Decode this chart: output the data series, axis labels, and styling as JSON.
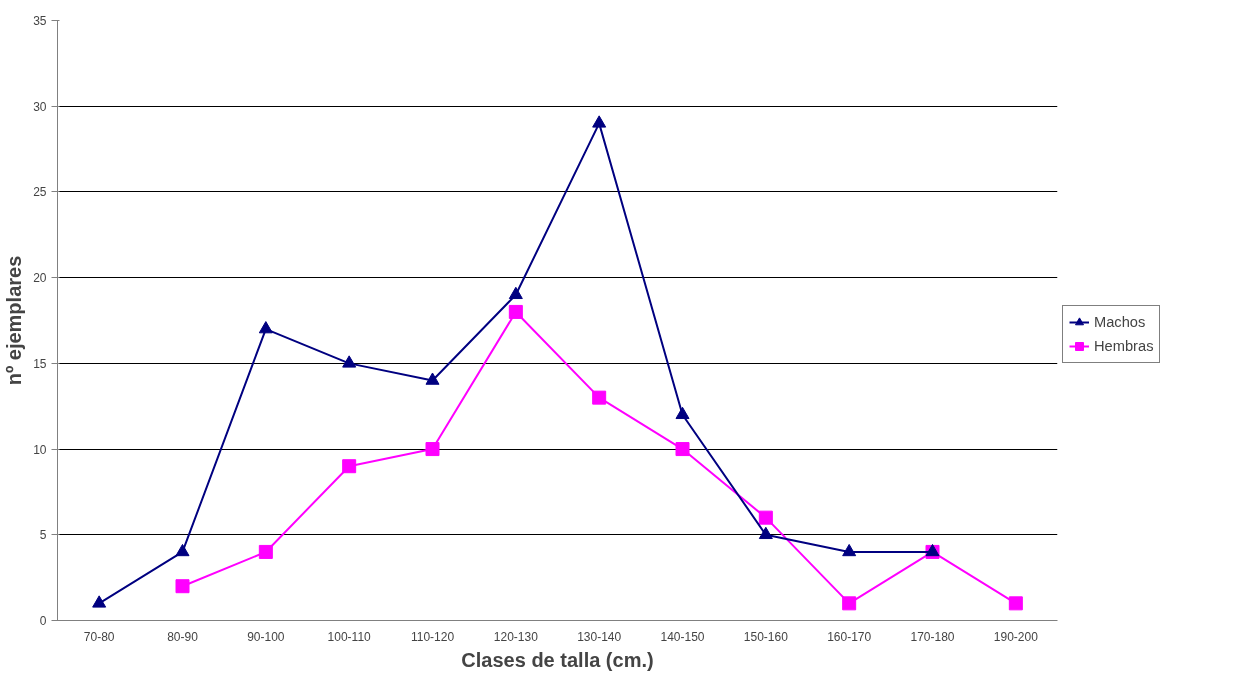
{
  "chart_data": {
    "type": "line",
    "xlabel": "Clases de talla (cm.)",
    "ylabel": "nº ejemplares",
    "categories": [
      "70-80",
      "80-90",
      "90-100",
      "100-110",
      "110-120",
      "120-130",
      "130-140",
      "140-150",
      "150-160",
      "160-170",
      "170-180",
      "190-200"
    ],
    "series": [
      {
        "name": "Machos",
        "color": "#000080",
        "marker": "triangle",
        "values": [
          1,
          4,
          17,
          15,
          14,
          19,
          29,
          12,
          5,
          4,
          4,
          null
        ]
      },
      {
        "name": "Hembras",
        "color": "#ff00ff",
        "marker": "square",
        "values": [
          null,
          2,
          4,
          9,
          10,
          18,
          13,
          10,
          6,
          1,
          4,
          1
        ]
      }
    ],
    "ylim": [
      0,
      35
    ],
    "yticks": [
      0,
      5,
      10,
      15,
      20,
      25,
      30,
      35
    ],
    "grid": "y",
    "legend": "right",
    "line_style": "solid"
  }
}
